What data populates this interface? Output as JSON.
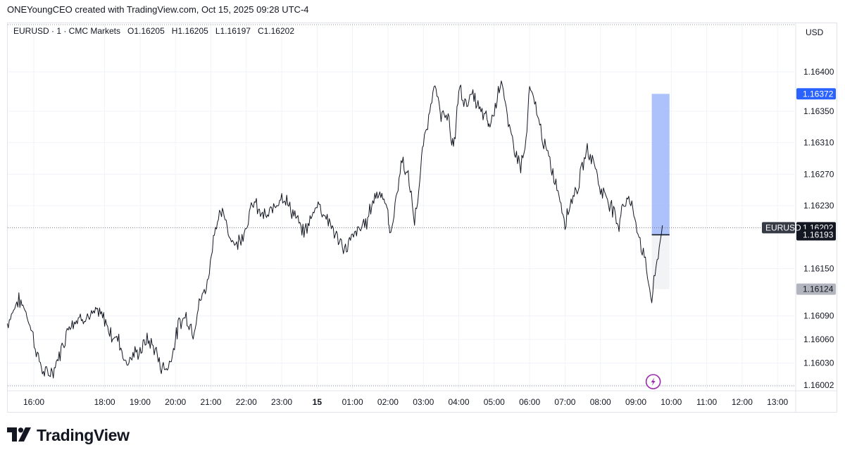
{
  "header": {
    "text": "ONEYoungCEO created with TradingView.com, Oct 15, 2025 09:28 UTC-4"
  },
  "legend": {
    "symbol": "EURUSD · 1 · CMC Markets",
    "o_label": "O",
    "o_value": "1.16205",
    "h_label": "H",
    "h_value": "1.16205",
    "l_label": "L",
    "l_value": "1.16197",
    "c_label": "C",
    "c_value": "1.16202"
  },
  "currency": "USD",
  "logo": {
    "text": "TradingView"
  },
  "colors": {
    "text": "#131722",
    "grid": "#f0f3fa",
    "border": "#e0e3eb",
    "line": "#131722",
    "target_blue": "#2962ff",
    "target_fill": "#9fb6f9",
    "stop_fill": "#f2f3f5",
    "stop_gray": "#b2b5be",
    "event_purple": "#9c27b0"
  },
  "chart_data": {
    "type": "line",
    "symbol": "EURUSD",
    "y_unit": "USD",
    "ylim": [
      1.15995,
      1.16422
    ],
    "y_ticks": [
      1.164,
      1.1635,
      1.1631,
      1.1627,
      1.1623,
      1.1615,
      1.1609,
      1.1606,
      1.1603,
      1.16002
    ],
    "y_tick_labels": [
      "1.16400",
      "1.16350",
      "1.16310",
      "1.16270",
      "1.16230",
      "1.16150",
      "1.16090",
      "1.16060",
      "1.16030",
      "1.16002"
    ],
    "x_ticks": [
      "16:00",
      "18:00",
      "19:00",
      "20:00",
      "21:00",
      "22:00",
      "23:00",
      "15",
      "01:00",
      "02:00",
      "03:00",
      "04:00",
      "05:00",
      "06:00",
      "07:00",
      "08:00",
      "09:00",
      "10:00",
      "11:00",
      "12:00",
      "13:00"
    ],
    "x_tick_hours": [
      16,
      18,
      19,
      20,
      21,
      22,
      23,
      24,
      25,
      26,
      27,
      28,
      29,
      30,
      31,
      32,
      33,
      34,
      35,
      36,
      37
    ],
    "xlim_hours": [
      15.25,
      37.35
    ],
    "series": [
      {
        "x_hours": [
          15.25,
          15.4,
          15.55,
          15.75,
          15.95,
          16.1,
          16.3,
          16.55,
          16.8,
          17.0,
          17.2,
          17.4,
          17.6,
          17.8,
          18.0,
          18.2,
          18.4,
          18.6,
          18.8,
          19.0,
          19.2,
          19.4,
          19.6,
          19.8,
          20.0,
          20.1,
          20.3,
          20.5,
          20.7,
          20.9,
          21.1,
          21.3,
          21.4,
          21.55,
          21.7,
          21.85,
          22.0,
          22.2,
          22.4,
          22.6,
          22.8,
          23.0,
          23.2,
          23.4,
          23.6,
          23.8,
          24.0,
          24.2,
          24.4,
          24.6,
          24.8,
          25.0,
          25.2,
          25.4,
          25.6,
          25.8,
          26.0,
          26.05,
          26.2,
          26.4,
          26.6,
          26.75,
          26.9,
          27.0,
          27.15,
          27.3,
          27.5,
          27.7,
          27.8,
          27.9,
          28.0,
          28.2,
          28.4,
          28.6,
          28.8,
          28.85,
          29.0,
          29.2,
          29.4,
          29.6,
          29.75,
          29.9,
          30.0,
          30.2,
          30.4,
          30.6,
          30.8,
          31.0,
          31.2,
          31.4,
          31.6,
          31.8,
          32.0,
          32.2,
          32.4,
          32.5,
          32.6,
          32.8,
          33.0,
          33.15,
          33.3,
          33.45,
          33.6,
          33.75
        ],
        "values": [
          1.1608,
          1.16095,
          1.1611,
          1.161,
          1.1607,
          1.1604,
          1.16015,
          1.1602,
          1.1605,
          1.1608,
          1.16085,
          1.1609,
          1.16088,
          1.16095,
          1.16085,
          1.16065,
          1.1606,
          1.1603,
          1.1604,
          1.16045,
          1.1606,
          1.1605,
          1.16025,
          1.16025,
          1.1606,
          1.1608,
          1.1609,
          1.1607,
          1.1611,
          1.1613,
          1.162,
          1.1622,
          1.16215,
          1.1619,
          1.1618,
          1.1619,
          1.16205,
          1.16235,
          1.1622,
          1.16215,
          1.1623,
          1.16245,
          1.1623,
          1.16215,
          1.16195,
          1.1621,
          1.16235,
          1.1622,
          1.16205,
          1.16185,
          1.16175,
          1.1619,
          1.162,
          1.1621,
          1.1624,
          1.1625,
          1.1622,
          1.1619,
          1.1623,
          1.1629,
          1.1626,
          1.1621,
          1.1626,
          1.1631,
          1.1634,
          1.1639,
          1.1634,
          1.1635,
          1.163,
          1.1632,
          1.1638,
          1.1636,
          1.1637,
          1.1635,
          1.1634,
          1.1633,
          1.1635,
          1.16395,
          1.1633,
          1.163,
          1.1628,
          1.1631,
          1.1638,
          1.1635,
          1.1631,
          1.1628,
          1.1625,
          1.1621,
          1.1624,
          1.1626,
          1.163,
          1.1629,
          1.1625,
          1.1624,
          1.1622,
          1.162,
          1.1623,
          1.1624,
          1.1621,
          1.1618,
          1.1615,
          1.1611,
          1.1616,
          1.16205
        ]
      }
    ],
    "last_price": {
      "label": "EURUSD",
      "value": "1.16202"
    },
    "position_tool": {
      "target": "1.16372",
      "entry": "1.16193",
      "stop": "1.16124",
      "x_start_hours": 33.45,
      "x_end_hours": 33.95
    },
    "event_marker": {
      "x_hours": 33.45,
      "icon": "lightning-icon"
    },
    "grid": true
  }
}
